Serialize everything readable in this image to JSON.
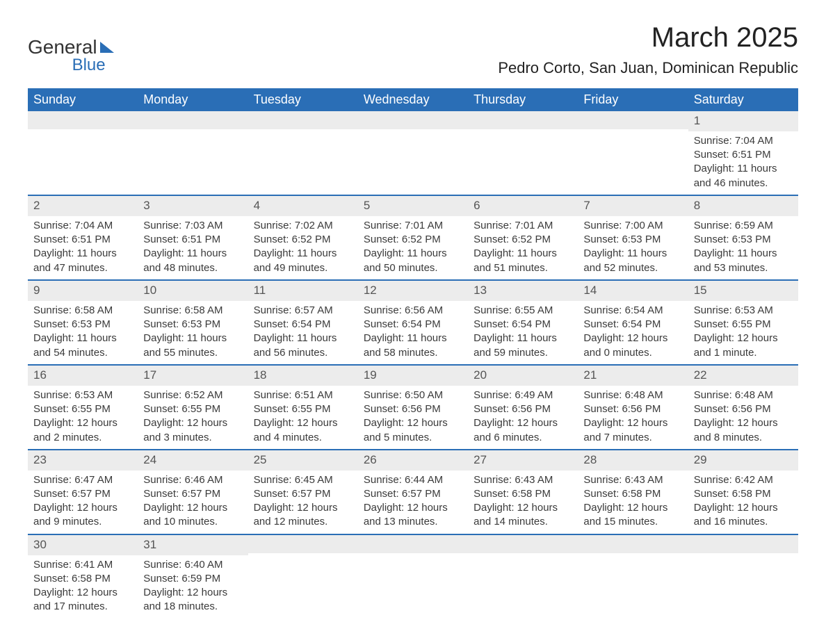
{
  "logo": {
    "top": "General",
    "bottom": "Blue"
  },
  "title": "March 2025",
  "subtitle": "Pedro Corto, San Juan, Dominican Republic",
  "colors": {
    "header_bg": "#2a6eb6",
    "header_text": "#ffffff",
    "strip_bg": "#ececec",
    "cell_text": "#3a3a3a",
    "row_border": "#2a6eb6",
    "page_bg": "#ffffff"
  },
  "typography": {
    "title_fontsize": 40,
    "subtitle_fontsize": 22,
    "dayhead_fontsize": 18,
    "daynum_fontsize": 17,
    "body_fontsize": 15
  },
  "layout": {
    "columns": 7,
    "rows": 6
  },
  "day_headers": [
    "Sunday",
    "Monday",
    "Tuesday",
    "Wednesday",
    "Thursday",
    "Friday",
    "Saturday"
  ],
  "weeks": [
    [
      {
        "day": "",
        "sunrise": "",
        "sunset": "",
        "daylight": ""
      },
      {
        "day": "",
        "sunrise": "",
        "sunset": "",
        "daylight": ""
      },
      {
        "day": "",
        "sunrise": "",
        "sunset": "",
        "daylight": ""
      },
      {
        "day": "",
        "sunrise": "",
        "sunset": "",
        "daylight": ""
      },
      {
        "day": "",
        "sunrise": "",
        "sunset": "",
        "daylight": ""
      },
      {
        "day": "",
        "sunrise": "",
        "sunset": "",
        "daylight": ""
      },
      {
        "day": "1",
        "sunrise": "Sunrise: 7:04 AM",
        "sunset": "Sunset: 6:51 PM",
        "daylight": "Daylight: 11 hours and 46 minutes."
      }
    ],
    [
      {
        "day": "2",
        "sunrise": "Sunrise: 7:04 AM",
        "sunset": "Sunset: 6:51 PM",
        "daylight": "Daylight: 11 hours and 47 minutes."
      },
      {
        "day": "3",
        "sunrise": "Sunrise: 7:03 AM",
        "sunset": "Sunset: 6:51 PM",
        "daylight": "Daylight: 11 hours and 48 minutes."
      },
      {
        "day": "4",
        "sunrise": "Sunrise: 7:02 AM",
        "sunset": "Sunset: 6:52 PM",
        "daylight": "Daylight: 11 hours and 49 minutes."
      },
      {
        "day": "5",
        "sunrise": "Sunrise: 7:01 AM",
        "sunset": "Sunset: 6:52 PM",
        "daylight": "Daylight: 11 hours and 50 minutes."
      },
      {
        "day": "6",
        "sunrise": "Sunrise: 7:01 AM",
        "sunset": "Sunset: 6:52 PM",
        "daylight": "Daylight: 11 hours and 51 minutes."
      },
      {
        "day": "7",
        "sunrise": "Sunrise: 7:00 AM",
        "sunset": "Sunset: 6:53 PM",
        "daylight": "Daylight: 11 hours and 52 minutes."
      },
      {
        "day": "8",
        "sunrise": "Sunrise: 6:59 AM",
        "sunset": "Sunset: 6:53 PM",
        "daylight": "Daylight: 11 hours and 53 minutes."
      }
    ],
    [
      {
        "day": "9",
        "sunrise": "Sunrise: 6:58 AM",
        "sunset": "Sunset: 6:53 PM",
        "daylight": "Daylight: 11 hours and 54 minutes."
      },
      {
        "day": "10",
        "sunrise": "Sunrise: 6:58 AM",
        "sunset": "Sunset: 6:53 PM",
        "daylight": "Daylight: 11 hours and 55 minutes."
      },
      {
        "day": "11",
        "sunrise": "Sunrise: 6:57 AM",
        "sunset": "Sunset: 6:54 PM",
        "daylight": "Daylight: 11 hours and 56 minutes."
      },
      {
        "day": "12",
        "sunrise": "Sunrise: 6:56 AM",
        "sunset": "Sunset: 6:54 PM",
        "daylight": "Daylight: 11 hours and 58 minutes."
      },
      {
        "day": "13",
        "sunrise": "Sunrise: 6:55 AM",
        "sunset": "Sunset: 6:54 PM",
        "daylight": "Daylight: 11 hours and 59 minutes."
      },
      {
        "day": "14",
        "sunrise": "Sunrise: 6:54 AM",
        "sunset": "Sunset: 6:54 PM",
        "daylight": "Daylight: 12 hours and 0 minutes."
      },
      {
        "day": "15",
        "sunrise": "Sunrise: 6:53 AM",
        "sunset": "Sunset: 6:55 PM",
        "daylight": "Daylight: 12 hours and 1 minute."
      }
    ],
    [
      {
        "day": "16",
        "sunrise": "Sunrise: 6:53 AM",
        "sunset": "Sunset: 6:55 PM",
        "daylight": "Daylight: 12 hours and 2 minutes."
      },
      {
        "day": "17",
        "sunrise": "Sunrise: 6:52 AM",
        "sunset": "Sunset: 6:55 PM",
        "daylight": "Daylight: 12 hours and 3 minutes."
      },
      {
        "day": "18",
        "sunrise": "Sunrise: 6:51 AM",
        "sunset": "Sunset: 6:55 PM",
        "daylight": "Daylight: 12 hours and 4 minutes."
      },
      {
        "day": "19",
        "sunrise": "Sunrise: 6:50 AM",
        "sunset": "Sunset: 6:56 PM",
        "daylight": "Daylight: 12 hours and 5 minutes."
      },
      {
        "day": "20",
        "sunrise": "Sunrise: 6:49 AM",
        "sunset": "Sunset: 6:56 PM",
        "daylight": "Daylight: 12 hours and 6 minutes."
      },
      {
        "day": "21",
        "sunrise": "Sunrise: 6:48 AM",
        "sunset": "Sunset: 6:56 PM",
        "daylight": "Daylight: 12 hours and 7 minutes."
      },
      {
        "day": "22",
        "sunrise": "Sunrise: 6:48 AM",
        "sunset": "Sunset: 6:56 PM",
        "daylight": "Daylight: 12 hours and 8 minutes."
      }
    ],
    [
      {
        "day": "23",
        "sunrise": "Sunrise: 6:47 AM",
        "sunset": "Sunset: 6:57 PM",
        "daylight": "Daylight: 12 hours and 9 minutes."
      },
      {
        "day": "24",
        "sunrise": "Sunrise: 6:46 AM",
        "sunset": "Sunset: 6:57 PM",
        "daylight": "Daylight: 12 hours and 10 minutes."
      },
      {
        "day": "25",
        "sunrise": "Sunrise: 6:45 AM",
        "sunset": "Sunset: 6:57 PM",
        "daylight": "Daylight: 12 hours and 12 minutes."
      },
      {
        "day": "26",
        "sunrise": "Sunrise: 6:44 AM",
        "sunset": "Sunset: 6:57 PM",
        "daylight": "Daylight: 12 hours and 13 minutes."
      },
      {
        "day": "27",
        "sunrise": "Sunrise: 6:43 AM",
        "sunset": "Sunset: 6:58 PM",
        "daylight": "Daylight: 12 hours and 14 minutes."
      },
      {
        "day": "28",
        "sunrise": "Sunrise: 6:43 AM",
        "sunset": "Sunset: 6:58 PM",
        "daylight": "Daylight: 12 hours and 15 minutes."
      },
      {
        "day": "29",
        "sunrise": "Sunrise: 6:42 AM",
        "sunset": "Sunset: 6:58 PM",
        "daylight": "Daylight: 12 hours and 16 minutes."
      }
    ],
    [
      {
        "day": "30",
        "sunrise": "Sunrise: 6:41 AM",
        "sunset": "Sunset: 6:58 PM",
        "daylight": "Daylight: 12 hours and 17 minutes."
      },
      {
        "day": "31",
        "sunrise": "Sunrise: 6:40 AM",
        "sunset": "Sunset: 6:59 PM",
        "daylight": "Daylight: 12 hours and 18 minutes."
      },
      {
        "day": "",
        "sunrise": "",
        "sunset": "",
        "daylight": ""
      },
      {
        "day": "",
        "sunrise": "",
        "sunset": "",
        "daylight": ""
      },
      {
        "day": "",
        "sunrise": "",
        "sunset": "",
        "daylight": ""
      },
      {
        "day": "",
        "sunrise": "",
        "sunset": "",
        "daylight": ""
      },
      {
        "day": "",
        "sunrise": "",
        "sunset": "",
        "daylight": ""
      }
    ]
  ]
}
